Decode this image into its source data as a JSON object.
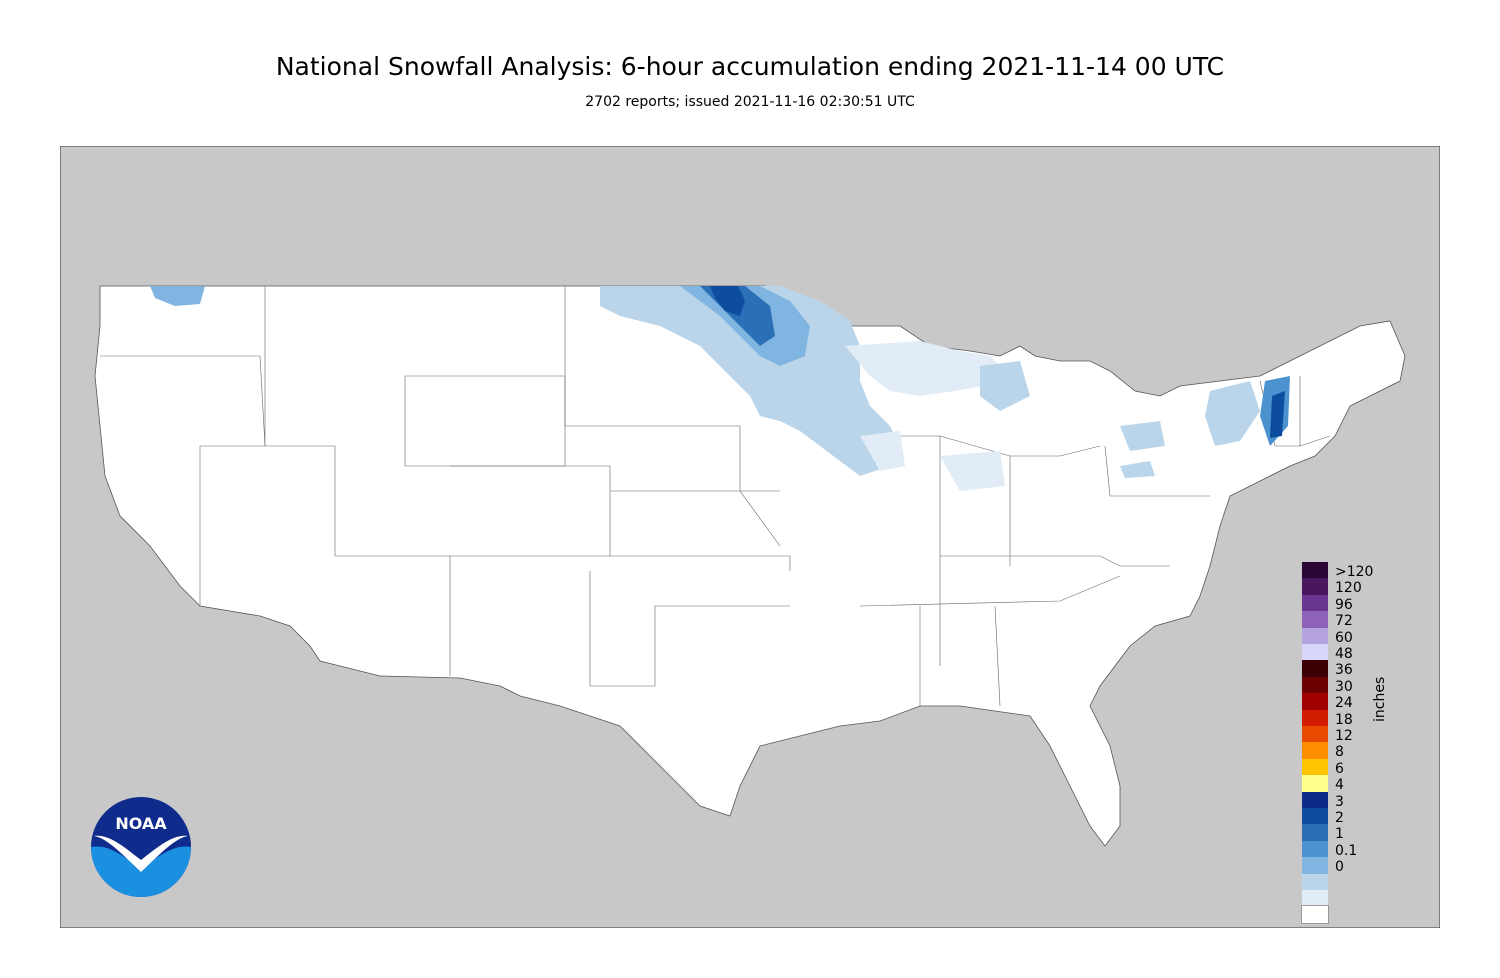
{
  "title": "National Snowfall Analysis: 6-hour accumulation ending 2021-11-14 00 UTC",
  "subtitle": "2702 reports; issued 2021-11-16 02:30:51 UTC",
  "legend": {
    "units": "inches",
    "entries": [
      {
        "label": ">120",
        "color": "#2a0634"
      },
      {
        "label": "120",
        "color": "#4b1660"
      },
      {
        "label": "96",
        "color": "#6a3591"
      },
      {
        "label": "72",
        "color": "#8e62b7"
      },
      {
        "label": "60",
        "color": "#b4a3df"
      },
      {
        "label": "48",
        "color": "#d9d6fb"
      },
      {
        "label": "36",
        "color": "#3a0004"
      },
      {
        "label": "30",
        "color": "#6b0000"
      },
      {
        "label": "24",
        "color": "#a00000"
      },
      {
        "label": "18",
        "color": "#d21d00"
      },
      {
        "label": "12",
        "color": "#e84a00"
      },
      {
        "label": "8",
        "color": "#ff8f00"
      },
      {
        "label": "6",
        "color": "#ffc400"
      },
      {
        "label": "4",
        "color": "#ffff8a"
      },
      {
        "label": "3",
        "color": "#0d2a88"
      },
      {
        "label": "2",
        "color": "#0c4da0"
      },
      {
        "label": "1",
        "color": "#2b6fb6"
      },
      {
        "label": "0.1",
        "color": "#4b92cf"
      },
      {
        "label": "0",
        "color": "#7fb5e0"
      }
    ],
    "extra_colors": [
      "#bad5ea",
      "#e2ecf6",
      "#ffffff"
    ]
  },
  "logo": {
    "text": "NOAA"
  },
  "colors": {
    "land_outside": "#c8c8c8",
    "conus": "#ffffff",
    "border": "#555555"
  }
}
